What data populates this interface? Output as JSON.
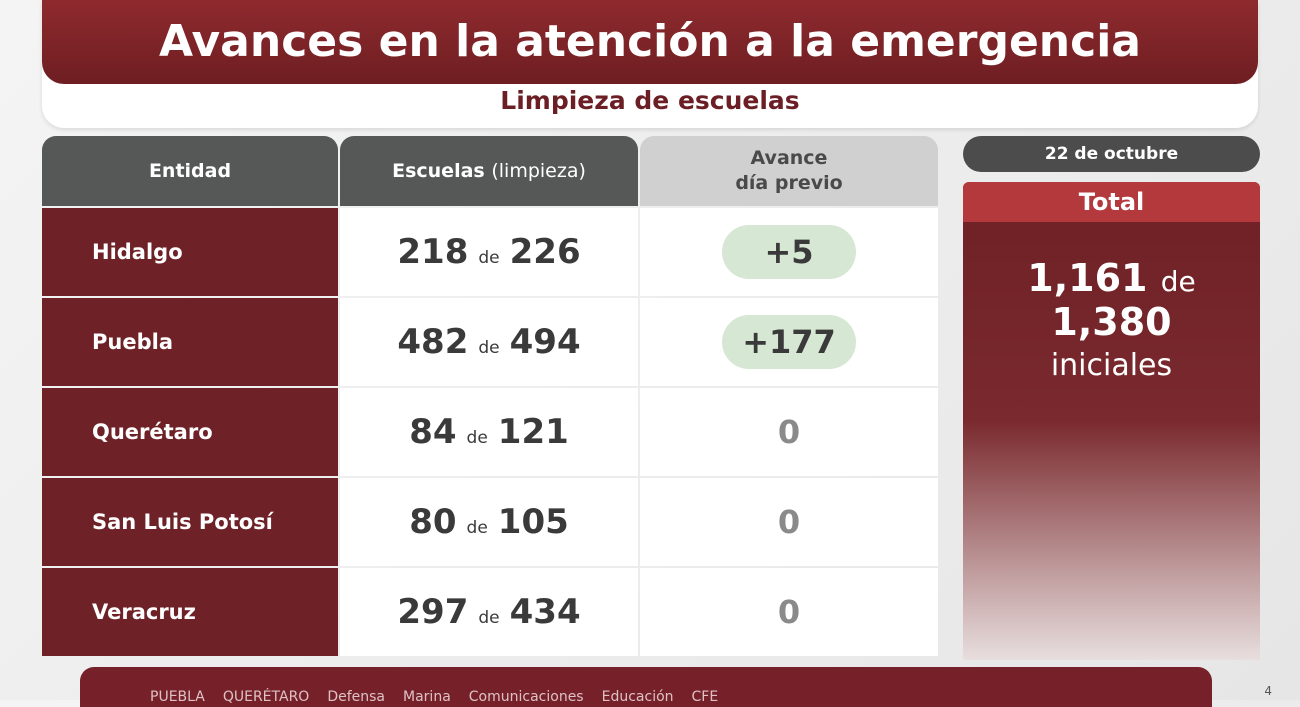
{
  "header": {
    "title": "Avances en la atención a la emergencia",
    "subtitle": "Limpieza de escuelas"
  },
  "table": {
    "columns": {
      "entidad": "Entidad",
      "escuelas_bold": "Escuelas",
      "escuelas_light": "(limpieza)",
      "avance_line1": "Avance",
      "avance_line2": "día previo"
    },
    "connector": "de",
    "rows": [
      {
        "entidad": "Hidalgo",
        "done": "218",
        "total": "226",
        "avance": "+5",
        "highlight": true
      },
      {
        "entidad": "Puebla",
        "done": "482",
        "total": "494",
        "avance": "+177",
        "highlight": true
      },
      {
        "entidad": "Querétaro",
        "done": "84",
        "total": "121",
        "avance": "0",
        "highlight": false
      },
      {
        "entidad": "San Luis Potosí",
        "done": "80",
        "total": "105",
        "avance": "0",
        "highlight": false
      },
      {
        "entidad": "Veracruz",
        "done": "297",
        "total": "434",
        "avance": "0",
        "highlight": false
      }
    ]
  },
  "summary": {
    "date": "22 de octubre",
    "label": "Total",
    "done": "1,161",
    "connector": "de",
    "total": "1,380",
    "unit": "iniciales"
  },
  "footer": {
    "items": [
      "PUEBLA",
      "QUERÉTARO",
      "Defensa",
      "Marina",
      "Comunicaciones",
      "Educación",
      "CFE"
    ],
    "page": "4"
  },
  "colors": {
    "brand": "#6e2227",
    "header_gray": "#555856",
    "pill_green": "#d6e7d3",
    "total_header": "#b3393d"
  }
}
